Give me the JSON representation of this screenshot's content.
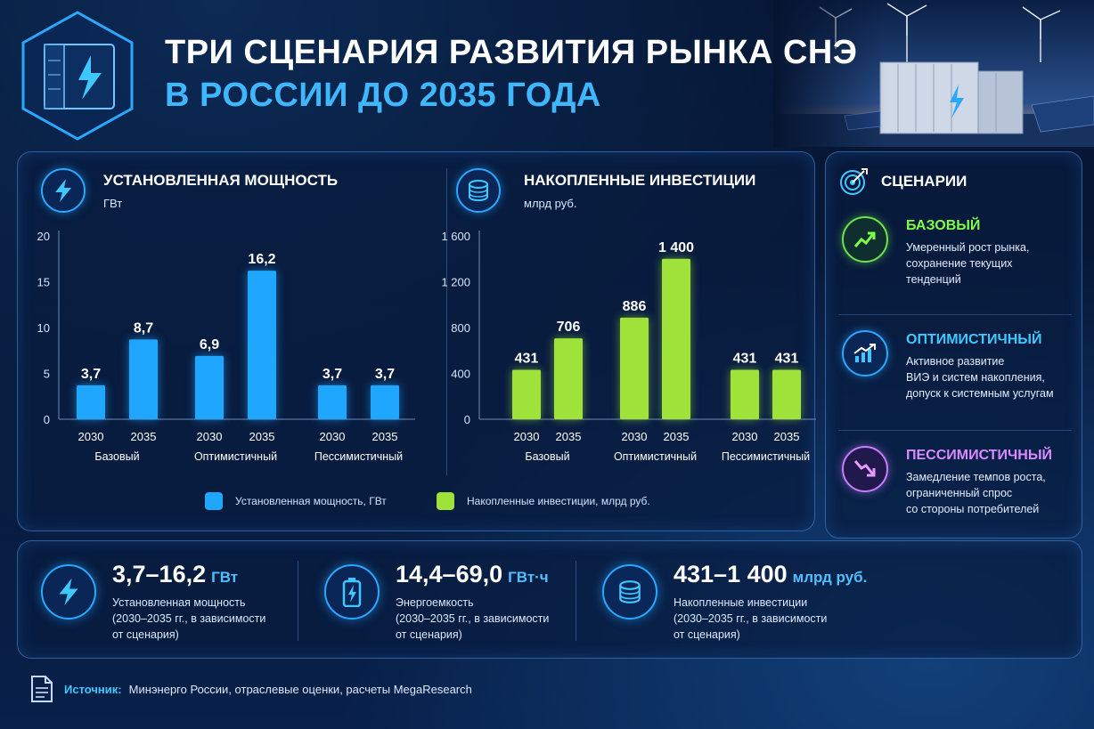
{
  "header": {
    "title_line1": "ТРИ СЦЕНАРИЯ РАЗВИТИЯ РЫНКА СНЭ",
    "title_line2": "В РОССИИ ДО 2035 ГОДА"
  },
  "colors": {
    "capacity_bar": "#1fa6ff",
    "investment_bar": "#9ee23a",
    "accent": "#3fb7ff",
    "base": "#7dff4a",
    "optimistic": "#3fc8ff",
    "pessimistic": "#d98bff"
  },
  "chart_data": [
    {
      "type": "bar",
      "title": "УСТАНОВЛЕННАЯ МОЩНОСТЬ",
      "ylabel": "ГВт",
      "categories": [
        "2030",
        "2035",
        "2030",
        "2035",
        "2030",
        "2035"
      ],
      "groups": [
        "Базовый",
        "Оптимистичный",
        "Пессимистичный"
      ],
      "values": [
        3.7,
        8.7,
        6.9,
        16.2,
        3.7,
        3.7
      ],
      "value_labels": [
        "3,7",
        "8,7",
        "6,9",
        "16,2",
        "3,7",
        "3,7"
      ],
      "yticks": [
        "20",
        "15",
        "10",
        "5",
        "0"
      ],
      "ylim": [
        0,
        20
      ],
      "grid": false,
      "icon": "lightning-icon"
    },
    {
      "type": "bar",
      "title": "НАКОПЛЕННЫЕ ИНВЕСТИЦИИ",
      "ylabel": "млрд руб.",
      "categories": [
        "2030",
        "2035",
        "2030",
        "2035",
        "2030",
        "2035"
      ],
      "groups": [
        "Базовый",
        "Оптимистичный",
        "Пессимистичный"
      ],
      "values": [
        431,
        706,
        886,
        1400,
        431,
        431
      ],
      "value_labels": [
        "431",
        "706",
        "886",
        "1 400",
        "431",
        "431"
      ],
      "yticks": [
        "1 600",
        "1 200",
        "800",
        "400",
        "0"
      ],
      "ylim": [
        0,
        1600
      ],
      "grid": false,
      "icon": "coins-icon"
    }
  ],
  "legend": {
    "capacity": "Установленная мощность, ГВт",
    "investment": "Накопленные инвестиции, млрд руб."
  },
  "scenarios": {
    "title": "СЦЕНАРИИ",
    "items": [
      {
        "name": "БАЗОВЫЙ",
        "lines": [
          "Умеренный рост рынка,",
          "сохранение текущих",
          "тенденций"
        ]
      },
      {
        "name": "ОПТИМИСТИЧНЫЙ",
        "lines": [
          "Активное развитие",
          "ВИЭ и систем накопления,",
          "допуск к системным услугам"
        ]
      },
      {
        "name": "ПЕССИМИСТИЧНЫЙ",
        "lines": [
          "Замедление темпов роста,",
          "ограниченный спрос",
          "со стороны потребителей"
        ]
      }
    ]
  },
  "stats": [
    {
      "value": "3,7–16,2",
      "unit": "ГВт",
      "lines": [
        "Установленная мощность",
        "(2030–2035 гг., в зависимости",
        "от сценария)"
      ],
      "icon": "lightning-icon"
    },
    {
      "value": "14,4–69,0",
      "unit": "ГВт·ч",
      "lines": [
        "Энергоемкость",
        "(2030–2035 гг., в зависимости",
        "от сценария)"
      ],
      "icon": "battery-icon"
    },
    {
      "value": "431–1 400",
      "unit": "млрд руб.",
      "lines": [
        "Накопленные инвестиции",
        "(2030–2035 гг., в зависимости",
        "от сценария)"
      ],
      "icon": "coins-icon"
    }
  ],
  "source": {
    "label": "Источник:",
    "text": "Минэнерго России, отраслевые оценки, расчеты MegaResearch"
  }
}
